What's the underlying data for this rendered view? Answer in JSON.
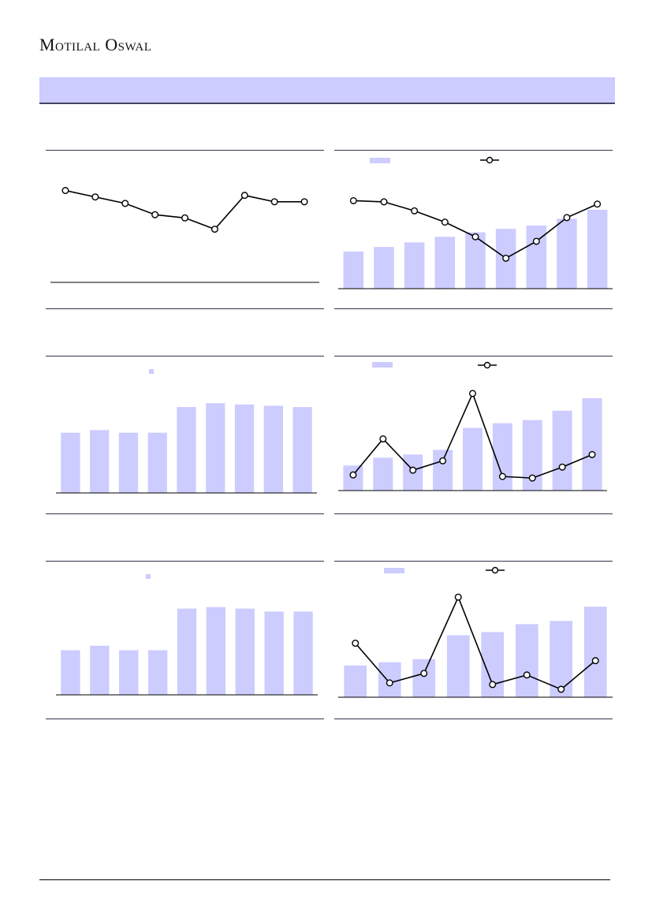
{
  "header": {
    "brand": "Motilal Oswal",
    "banner_text": ""
  },
  "colors": {
    "bar": "#ccccff",
    "line": "#000000",
    "banner": "#ccccff",
    "rule": "#33334d"
  },
  "chart_data": [
    {
      "type": "line",
      "title": "",
      "values": [
        77,
        73,
        69,
        62,
        60,
        53,
        74,
        70,
        70
      ],
      "ylim": [
        20,
        90
      ]
    },
    {
      "type": "bar",
      "title": "",
      "series": [
        {
          "type": "bar",
          "values": [
            33,
            37,
            41,
            46,
            50,
            53,
            56,
            62,
            70
          ]
        },
        {
          "type": "line",
          "values": [
            78,
            77,
            69,
            59,
            46,
            27,
            42,
            63,
            75
          ]
        }
      ],
      "ylim": [
        0,
        100
      ]
    },
    {
      "type": "bar",
      "title": "",
      "values": [
        47,
        49,
        47,
        47,
        67,
        70,
        69,
        68,
        67
      ],
      "ylim": [
        0,
        80
      ]
    },
    {
      "type": "bar",
      "title": "",
      "series": [
        {
          "type": "bar",
          "values": [
            16,
            21,
            23,
            26,
            40,
            43,
            45,
            51,
            59
          ]
        },
        {
          "type": "line",
          "values": [
            10,
            33,
            13,
            19,
            62,
            9,
            8,
            15,
            23
          ]
        }
      ],
      "ylim": [
        0,
        70
      ]
    },
    {
      "type": "bar",
      "title": "",
      "values": [
        30,
        33,
        30,
        30,
        58,
        59,
        58,
        56,
        56
      ],
      "ylim": [
        0,
        70
      ]
    },
    {
      "type": "bar",
      "title": "",
      "series": [
        {
          "type": "bar",
          "values": [
            20,
            22,
            24,
            39,
            41,
            46,
            48,
            57
          ]
        },
        {
          "type": "line",
          "values": [
            34,
            9,
            15,
            63,
            8,
            14,
            5,
            23
          ]
        }
      ],
      "ylim": [
        0,
        70
      ]
    }
  ]
}
